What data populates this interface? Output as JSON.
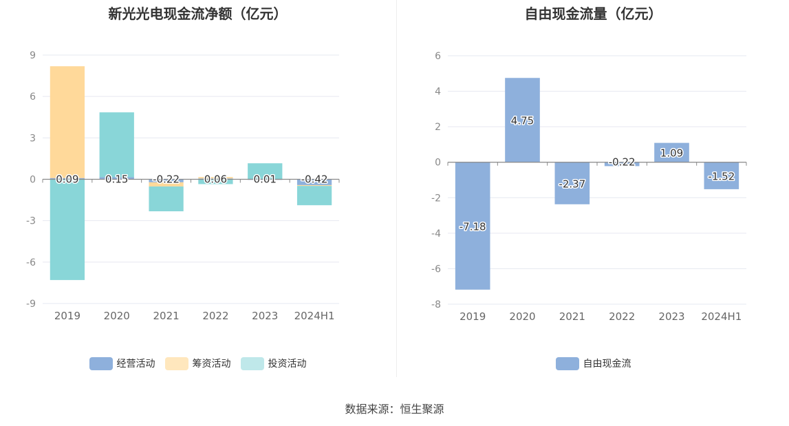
{
  "source_text": "数据来源：恒生聚源",
  "chart_data": [
    {
      "type": "bar",
      "stacked": true,
      "title": "新光光电现金流净额（亿元）",
      "categories": [
        "2019",
        "2020",
        "2021",
        "2022",
        "2023",
        "2024H1"
      ],
      "ylim": [
        -9,
        9
      ],
      "yticks": [
        9,
        6,
        3,
        0,
        -3,
        -6,
        -9
      ],
      "grid": true,
      "legend_position": "bottom",
      "series": [
        {
          "name": "经营活动",
          "color": "#8eb0dc",
          "values": [
            0.09,
            0.15,
            -0.22,
            0.06,
            0.01,
            -0.42
          ]
        },
        {
          "name": "筹资活动",
          "color": "#ffd99a",
          "values": [
            8.1,
            0.0,
            -0.3,
            0.1,
            0.0,
            -0.06
          ]
        },
        {
          "name": "投资活动",
          "color": "#89d6d8",
          "values": [
            -7.3,
            4.7,
            -1.8,
            -0.35,
            1.15,
            -1.4
          ]
        }
      ],
      "data_labels": [
        "0.09",
        "0.15",
        "-0.22",
        "0.06",
        "0.01",
        "-0.42"
      ],
      "legend_swatch_colors": [
        "#8eb0dc",
        "#ffe7bd",
        "#bfe8ea"
      ]
    },
    {
      "type": "bar",
      "title": "自由现金流量（亿元）",
      "categories": [
        "2019",
        "2020",
        "2021",
        "2022",
        "2023",
        "2024H1"
      ],
      "ylim": [
        -8,
        6
      ],
      "yticks": [
        6,
        4,
        2,
        0,
        -2,
        -4,
        -6,
        -8
      ],
      "grid": true,
      "legend_position": "bottom",
      "series": [
        {
          "name": "自由现金流",
          "color": "#8eb0dc",
          "values": [
            -7.18,
            4.75,
            -2.37,
            -0.22,
            1.09,
            -1.52
          ]
        }
      ],
      "data_labels": [
        "-7.18",
        "4.75",
        "-2.37",
        "-0.22",
        "1.09",
        "-1.52"
      ]
    }
  ]
}
